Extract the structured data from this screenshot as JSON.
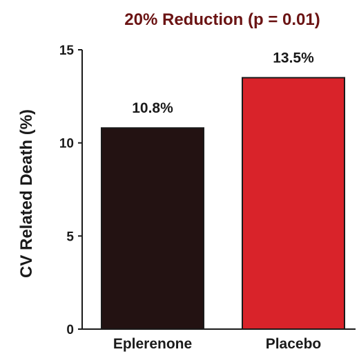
{
  "chart_data": {
    "type": "bar",
    "title": "20% Reduction (p = 0.01)",
    "title_color": "#6b1414",
    "xlabel": "",
    "ylabel": "CV Related Death (%)",
    "ylim": [
      0,
      15
    ],
    "yticks": [
      0,
      5,
      10,
      15
    ],
    "ytick_labels": [
      "0",
      "5",
      "10",
      "15"
    ],
    "grid": false,
    "categories": [
      "Eplerenone",
      "Placebo"
    ],
    "values": [
      10.8,
      13.5
    ],
    "data_labels": [
      "10.8%",
      "13.5%"
    ],
    "colors": [
      "#231212",
      "#d9232a"
    ]
  }
}
